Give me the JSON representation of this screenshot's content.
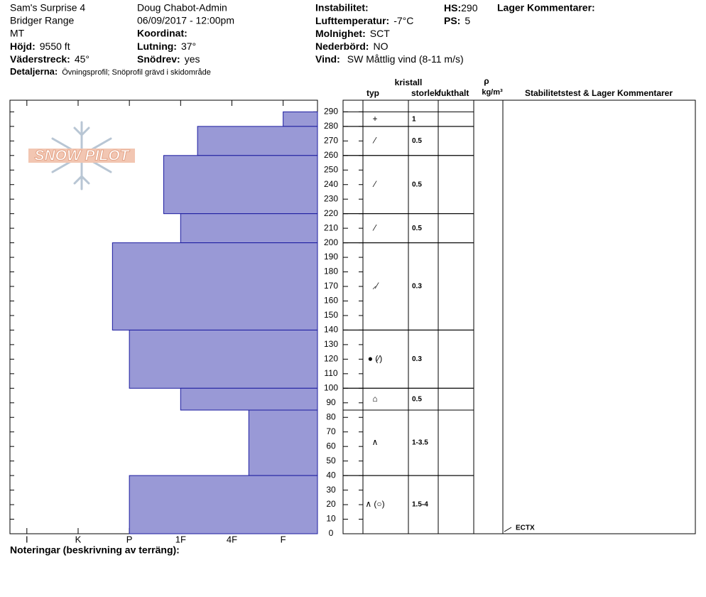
{
  "header": {
    "location": "Sam's Surprise 4",
    "range": "Bridger Range",
    "state": "MT",
    "elevation": {
      "label": "Höjd:",
      "value": "9550 ft"
    },
    "aspect": {
      "label": "Väderstreck:",
      "value": "45°"
    },
    "details": {
      "label": "Detaljerna:",
      "value": "Övningsprofil;  Snöprofil grävd i skidområde"
    },
    "observer": "Doug Chabot-Admin",
    "datetime": "06/09/2017 - 12:00pm",
    "coordinates_label": "Koordinat:",
    "slope": {
      "label": "Lutning:",
      "value": "37°"
    },
    "wind_loading": {
      "label": "Snödrev:",
      "value": "yes"
    },
    "instability_label": "Instabilitet:",
    "air_temp": {
      "label": "Lufttemperatur:",
      "value": "-7°C"
    },
    "sky": {
      "label": "Molnighet:",
      "value": "SCT"
    },
    "precip": {
      "label": "Nederbörd:",
      "value": "NO"
    },
    "wind": {
      "label": "Vind:",
      "value": "SW  Måttlig vind (8-11 m/s)"
    },
    "hs": {
      "label": "HS:",
      "value": 290
    },
    "ps": {
      "label": "PS:",
      "value": 5
    },
    "layer_comments_label": "Lager Kommentarer:"
  },
  "columns": {
    "crystal": "kristall",
    "type": "typ",
    "size": "storlek",
    "moisture": "fukthalt",
    "rho": "ρ",
    "density_unit": "kg/m³",
    "stability": "Stabilitetstest & Lager Kommentarer"
  },
  "logo": "SNOW PILOT",
  "chart_data": {
    "type": "hardness-profile",
    "color": "#9999d6",
    "edge_color": "#1c1ca0",
    "ylim": [
      0,
      298
    ],
    "yticks": [
      0,
      10,
      20,
      30,
      40,
      50,
      60,
      70,
      80,
      90,
      100,
      110,
      120,
      130,
      140,
      150,
      160,
      170,
      180,
      190,
      200,
      210,
      220,
      230,
      240,
      250,
      260,
      270,
      280,
      290
    ],
    "xlim": [
      6.33,
      0.33
    ],
    "xticks": [
      {
        "value": 6,
        "label": "I"
      },
      {
        "value": 5,
        "label": "K"
      },
      {
        "value": 4,
        "label": "P"
      },
      {
        "value": 3,
        "label": "1F"
      },
      {
        "value": 2,
        "label": "4F"
      },
      {
        "value": 1,
        "label": "F"
      }
    ],
    "layers": [
      {
        "bottom": 280,
        "top": 290,
        "hardness": 1,
        "grain": "+",
        "size": "1"
      },
      {
        "bottom": 260,
        "top": 280,
        "hardness": 2.67,
        "grain": "⁄",
        "size": "0.5"
      },
      {
        "bottom": 220,
        "top": 260,
        "hardness": 3.33,
        "grain": "⁄",
        "size": "0.5"
      },
      {
        "bottom": 200,
        "top": 220,
        "hardness": 3,
        "grain": "⁄",
        "size": "0.5"
      },
      {
        "bottom": 140,
        "top": 200,
        "hardness": 4.33,
        "grain": "⸝⁄",
        "size": "0.3"
      },
      {
        "bottom": 100,
        "top": 140,
        "hardness": 4,
        "grain": "●  (⁄)",
        "size": "0.3"
      },
      {
        "bottom": 85,
        "top": 100,
        "hardness": 3,
        "grain": "⌂",
        "size": "0.5"
      },
      {
        "bottom": 40,
        "top": 85,
        "hardness": 1.67,
        "grain": "∧",
        "size": "1-3.5"
      },
      {
        "bottom": 0,
        "top": 40,
        "hardness": 4,
        "grain": "∧ (○)",
        "size": "1.5-4"
      }
    ],
    "stability_tests": [
      "ECTX"
    ]
  },
  "footer": "Noteringar (beskrivning av terräng):"
}
